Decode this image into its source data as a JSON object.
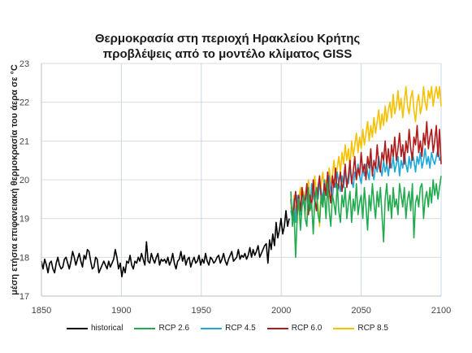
{
  "chart_data": {
    "type": "line",
    "title": "Θερμοκρασία στη περιοχή Ηρακλείου Κρήτης",
    "subtitle": "προβλέψεις από το μοντέλο κλίματος GISS",
    "xlabel": "",
    "ylabel": "μέση ετήσια επιφανειακή θερμοκρασία του άερα σε °C",
    "xlim": [
      1850,
      2100
    ],
    "ylim": [
      17,
      23
    ],
    "xticks": [
      1850,
      1900,
      1950,
      2000,
      2050,
      2100
    ],
    "yticks": [
      17,
      18,
      19,
      20,
      21,
      22,
      23
    ],
    "grid": true,
    "legend_position": "bottom",
    "series": [
      {
        "name": "historical",
        "color": "#000000",
        "x_start": 1850,
        "x_end": 2005,
        "values": [
          17.9,
          17.7,
          17.95,
          17.8,
          17.6,
          17.85,
          17.9,
          17.7,
          17.6,
          17.85,
          18.0,
          17.8,
          17.7,
          17.75,
          17.95,
          18.0,
          17.85,
          17.7,
          17.9,
          18.15,
          18.0,
          17.8,
          17.95,
          18.1,
          17.9,
          17.75,
          18.05,
          17.95,
          18.2,
          18.15,
          17.9,
          17.7,
          17.75,
          18.0,
          17.95,
          17.6,
          17.7,
          17.8,
          17.9,
          17.8,
          17.7,
          17.9,
          17.75,
          17.85,
          17.95,
          18.2,
          18.0,
          17.7,
          17.85,
          17.5,
          17.75,
          17.6,
          17.9,
          17.85,
          18.05,
          17.8,
          17.7,
          17.9,
          17.85,
          18.0,
          17.9,
          18.1,
          17.95,
          17.8,
          18.4,
          17.9,
          17.85,
          18.1,
          17.95,
          17.85,
          18.0,
          18.1,
          17.8,
          17.95,
          17.9,
          17.95,
          17.85,
          18.0,
          17.8,
          17.9,
          18.1,
          17.85,
          17.7,
          17.9,
          17.95,
          18.15,
          17.9,
          18.05,
          17.8,
          17.95,
          18.0,
          17.75,
          17.9,
          18.0,
          17.85,
          17.9,
          18.05,
          17.8,
          17.95,
          17.85,
          18.1,
          17.9,
          17.8,
          18.0,
          17.95,
          17.85,
          17.9,
          18.0,
          18.05,
          17.85,
          17.95,
          18.1,
          17.9,
          17.8,
          17.95,
          18.05,
          18.15,
          17.9,
          17.95,
          18.0,
          18.2,
          17.95,
          18.05,
          18.0,
          18.1,
          17.95,
          18.05,
          18.25,
          18.0,
          18.2,
          18.05,
          18.15,
          18.3,
          18.0,
          18.1,
          18.2,
          18.3,
          18.35,
          17.85,
          18.45,
          18.2,
          18.6,
          18.3,
          18.9,
          18.5,
          18.7,
          19.0,
          18.6,
          18.8,
          19.2,
          18.8,
          19.0
        ]
      },
      {
        "name": "RCP 2.6",
        "color": "#22aa4e",
        "x_start": 2006,
        "x_end": 2100,
        "values": [
          19.7,
          18.8,
          19.2,
          18.0,
          19.1,
          19.5,
          18.7,
          19.3,
          19.6,
          19.0,
          18.8,
          19.8,
          19.2,
          19.4,
          18.6,
          19.5,
          19.8,
          19.1,
          18.9,
          19.6,
          19.3,
          19.7,
          19.0,
          19.9,
          19.2,
          18.8,
          19.6,
          19.4,
          19.1,
          19.9,
          19.2,
          18.9,
          19.6,
          19.3,
          19.8,
          19.0,
          19.4,
          19.7,
          18.9,
          19.5,
          19.2,
          19.9,
          19.1,
          19.4,
          19.6,
          19.0,
          19.8,
          19.3,
          18.7,
          19.6,
          19.2,
          19.9,
          19.4,
          19.0,
          19.7,
          19.3,
          19.8,
          19.1,
          18.4,
          19.5,
          19.9,
          19.2,
          19.6,
          19.0,
          19.8,
          19.3,
          19.5,
          19.1,
          19.9,
          19.6,
          19.3,
          19.8,
          19.0,
          19.5,
          19.7,
          19.2,
          19.9,
          18.5,
          19.4,
          19.6,
          19.3,
          19.8,
          19.9,
          19.0,
          19.5,
          19.7,
          19.3,
          19.8,
          19.4,
          20.0,
          19.6,
          19.9,
          19.5,
          19.8,
          20.1
        ]
      },
      {
        "name": "RCP 4.5",
        "color": "#1ea8d8",
        "x_start": 2006,
        "x_end": 2100,
        "values": [
          19.2,
          19.0,
          19.5,
          18.9,
          19.6,
          19.3,
          19.1,
          19.7,
          19.4,
          19.2,
          19.8,
          19.5,
          19.3,
          19.9,
          19.6,
          19.4,
          19.8,
          19.5,
          19.9,
          19.7,
          19.5,
          20.0,
          19.6,
          19.8,
          20.1,
          19.7,
          19.5,
          20.0,
          19.8,
          20.2,
          19.9,
          19.7,
          20.1,
          19.8,
          20.2,
          20.0,
          19.9,
          20.3,
          20.0,
          19.8,
          20.2,
          20.0,
          20.4,
          20.1,
          19.9,
          20.3,
          20.1,
          20.4,
          20.2,
          20.0,
          20.5,
          20.2,
          20.0,
          20.4,
          20.2,
          20.6,
          20.3,
          20.1,
          20.5,
          20.2,
          20.4,
          20.1,
          20.5,
          20.3,
          20.6,
          20.2,
          20.4,
          20.6,
          20.1,
          20.5,
          20.3,
          20.7,
          20.4,
          20.2,
          20.6,
          20.3,
          20.7,
          20.5,
          20.2,
          20.6,
          20.4,
          20.7,
          20.3,
          20.5,
          20.8,
          20.4,
          20.6,
          20.3,
          20.7,
          20.5,
          20.4,
          20.6,
          20.8,
          20.5,
          20.6
        ]
      },
      {
        "name": "RCP 6.0",
        "color": "#b01c1c",
        "x_start": 2006,
        "x_end": 2100,
        "values": [
          19.5,
          19.0,
          19.3,
          19.7,
          19.1,
          19.6,
          19.2,
          19.8,
          19.4,
          19.5,
          19.9,
          19.1,
          19.6,
          19.3,
          20.0,
          19.5,
          19.2,
          19.8,
          20.1,
          19.5,
          19.3,
          19.9,
          19.6,
          20.2,
          19.7,
          19.4,
          20.1,
          19.8,
          20.3,
          19.6,
          19.9,
          20.2,
          19.7,
          20.0,
          20.4,
          19.8,
          20.1,
          20.5,
          19.9,
          20.2,
          20.6,
          20.0,
          20.3,
          20.1,
          20.7,
          20.2,
          20.4,
          20.0,
          20.6,
          20.3,
          20.8,
          20.1,
          20.5,
          20.3,
          20.9,
          20.4,
          20.2,
          20.7,
          20.5,
          21.0,
          20.4,
          20.8,
          20.3,
          20.9,
          20.6,
          21.1,
          20.5,
          20.8,
          21.2,
          20.6,
          20.9,
          20.4,
          21.0,
          20.7,
          21.3,
          20.8,
          20.5,
          21.1,
          20.9,
          21.4,
          20.7,
          21.0,
          20.6,
          21.2,
          20.9,
          21.5,
          20.8,
          21.1,
          21.3,
          20.7,
          21.0,
          21.4,
          20.6,
          21.3,
          20.4
        ]
      },
      {
        "name": "RCP 8.5",
        "color": "#f5c100",
        "x_start": 2006,
        "x_end": 2100,
        "values": [
          19.3,
          19.0,
          19.6,
          19.2,
          18.9,
          19.5,
          19.8,
          19.3,
          19.7,
          19.1,
          19.6,
          20.0,
          19.4,
          19.8,
          19.5,
          20.1,
          19.6,
          19.3,
          18.8,
          19.9,
          20.2,
          19.7,
          20.0,
          19.6,
          20.3,
          19.9,
          20.1,
          20.5,
          20.0,
          20.3,
          20.6,
          20.2,
          20.7,
          20.4,
          20.9,
          20.5,
          20.8,
          20.3,
          21.0,
          20.6,
          20.9,
          21.2,
          20.7,
          21.1,
          20.8,
          21.3,
          20.9,
          21.2,
          21.5,
          21.0,
          21.4,
          21.1,
          21.6,
          21.2,
          21.5,
          21.8,
          21.3,
          21.7,
          21.4,
          21.9,
          21.5,
          21.8,
          22.0,
          21.6,
          22.2,
          21.7,
          21.9,
          22.3,
          21.8,
          22.1,
          21.6,
          22.0,
          22.4,
          21.9,
          21.7,
          22.1,
          22.3,
          21.8,
          21.5,
          22.0,
          22.2,
          21.7,
          21.9,
          22.4,
          22.0,
          21.8,
          22.3,
          22.1,
          22.4,
          21.9,
          22.2,
          22.4,
          22.1,
          22.4,
          21.9
        ]
      }
    ]
  }
}
